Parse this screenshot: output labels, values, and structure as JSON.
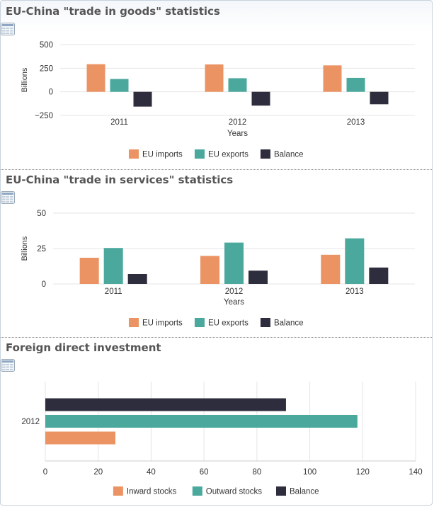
{
  "colors": {
    "imports": "#eb9363",
    "exports": "#4aa89c",
    "balance": "#2d2d3d",
    "grid": "#e4e4e4",
    "text": "#333333"
  },
  "icons": {
    "table_button": "table-view-icon"
  },
  "charts": [
    {
      "title": "EU-China \"trade in goods\" statistics",
      "chart_data": {
        "type": "bar",
        "orientation": "vertical",
        "categories": [
          "2011",
          "2012",
          "2013"
        ],
        "series": [
          {
            "name": "EU imports",
            "values": [
              293,
              290,
              280
            ]
          },
          {
            "name": "EU exports",
            "values": [
              136,
              144,
              148
            ]
          },
          {
            "name": "Balance",
            "values": [
              -157,
              -146,
              -132
            ]
          }
        ],
        "ylabel": "Billions",
        "xlabel": "Years",
        "ylim": [
          -250,
          500
        ],
        "yticks": [
          "500",
          "250",
          "0",
          "−250"
        ],
        "grid": true,
        "legend": "bottom"
      }
    },
    {
      "title": "EU-China \"trade in services\" statistics",
      "chart_data": {
        "type": "bar",
        "orientation": "vertical",
        "categories": [
          "2011",
          "2012",
          "2013"
        ],
        "series": [
          {
            "name": "EU imports",
            "values": [
              18.5,
              19.8,
              20.6
            ]
          },
          {
            "name": "EU exports",
            "values": [
              25.4,
              29.2,
              32.2
            ]
          },
          {
            "name": "Balance",
            "values": [
              7.0,
              9.4,
              11.6
            ]
          }
        ],
        "ylabel": "Billions",
        "xlabel": "Years",
        "ylim": [
          0,
          50
        ],
        "yticks": [
          "50",
          "25",
          "0"
        ],
        "grid": true,
        "legend": "bottom"
      }
    },
    {
      "title": "Foreign direct investment",
      "chart_data": {
        "type": "bar",
        "orientation": "horizontal",
        "categories": [
          "2012"
        ],
        "series": [
          {
            "name": "Inward stocks",
            "values": [
              26.5
            ]
          },
          {
            "name": "Outward stocks",
            "values": [
              118
            ]
          },
          {
            "name": "Balance",
            "values": [
              91
            ]
          }
        ],
        "xlabel": "",
        "xlim": [
          0,
          140
        ],
        "xticks": [
          "0",
          "20",
          "40",
          "60",
          "80",
          "100",
          "120",
          "140"
        ],
        "grid": true,
        "legend": "bottom"
      }
    }
  ]
}
